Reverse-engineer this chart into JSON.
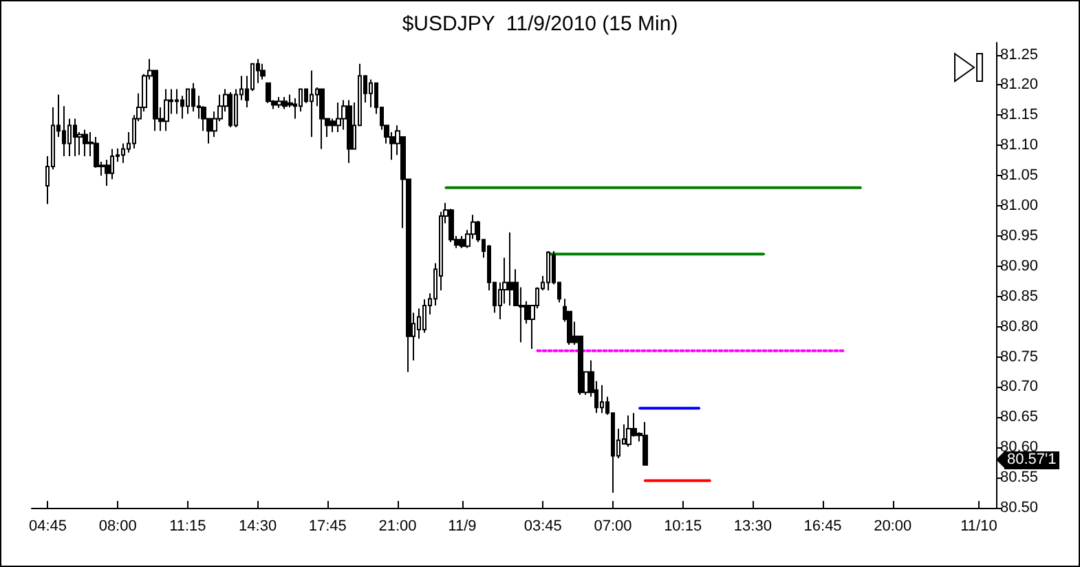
{
  "chart_data": {
    "type": "candlestick",
    "title": "$USDJPY  11/9/2010 (15 Min)",
    "xlim": [
      "2010-11-08T04:00",
      "2010-11-10T00:48"
    ],
    "ylim": [
      80.5,
      81.27
    ],
    "xticks": [
      {
        "value": "2010-11-08T04:45",
        "label": "04:45"
      },
      {
        "value": "2010-11-08T08:00",
        "label": "08:00"
      },
      {
        "value": "2010-11-08T11:15",
        "label": "11:15"
      },
      {
        "value": "2010-11-08T14:30",
        "label": "14:30"
      },
      {
        "value": "2010-11-08T17:45",
        "label": "17:45"
      },
      {
        "value": "2010-11-08T21:00",
        "label": "21:00"
      },
      {
        "value": "2010-11-09T00:00",
        "label": "11/9"
      },
      {
        "value": "2010-11-09T03:45",
        "label": "03:45"
      },
      {
        "value": "2010-11-09T07:00",
        "label": "07:00"
      },
      {
        "value": "2010-11-09T10:15",
        "label": "10:15"
      },
      {
        "value": "2010-11-09T13:30",
        "label": "13:30"
      },
      {
        "value": "2010-11-09T16:45",
        "label": "16:45"
      },
      {
        "value": "2010-11-09T20:00",
        "label": "20:00"
      },
      {
        "value": "2010-11-10T00:00",
        "label": "11/10"
      }
    ],
    "yticks": [
      {
        "value": 80.5,
        "label": "80.50"
      },
      {
        "value": 80.55,
        "label": "80.55"
      },
      {
        "value": 80.6,
        "label": "80.60"
      },
      {
        "value": 80.65,
        "label": "80.65"
      },
      {
        "value": 80.7,
        "label": "80.70"
      },
      {
        "value": 80.75,
        "label": "80.75"
      },
      {
        "value": 80.8,
        "label": "80.80"
      },
      {
        "value": 80.85,
        "label": "80.85"
      },
      {
        "value": 80.9,
        "label": "80.90"
      },
      {
        "value": 80.95,
        "label": "80.95"
      },
      {
        "value": 81,
        "label": "81.00"
      },
      {
        "value": 81.05,
        "label": "81.05"
      },
      {
        "value": 81.1,
        "label": "81.10"
      },
      {
        "value": 81.15,
        "label": "81.15"
      },
      {
        "value": 81.2,
        "label": "81.20"
      },
      {
        "value": 81.25,
        "label": "81.25"
      }
    ],
    "annotations": [
      "80.57'1"
    ],
    "series": [
      {
        "color": "#000000",
        "x": [
          "2010-11-08T04:45",
          "2010-11-08T05:00",
          "2010-11-08T05:15",
          "2010-11-08T05:30",
          "2010-11-08T05:45",
          "2010-11-08T06:00",
          "2010-11-08T06:15",
          "2010-11-08T06:30",
          "2010-11-08T06:45",
          "2010-11-08T07:00",
          "2010-11-08T07:15",
          "2010-11-08T07:30",
          "2010-11-08T07:45",
          "2010-11-08T08:00",
          "2010-11-08T08:15",
          "2010-11-08T08:30",
          "2010-11-08T08:45",
          "2010-11-08T09:00",
          "2010-11-08T09:15",
          "2010-11-08T09:30",
          "2010-11-08T09:45",
          "2010-11-08T10:00",
          "2010-11-08T10:15",
          "2010-11-08T10:30",
          "2010-11-08T10:45",
          "2010-11-08T11:00",
          "2010-11-08T11:15",
          "2010-11-08T11:30",
          "2010-11-08T11:45",
          "2010-11-08T12:00",
          "2010-11-08T12:15",
          "2010-11-08T12:30",
          "2010-11-08T12:45",
          "2010-11-08T13:00",
          "2010-11-08T13:15",
          "2010-11-08T13:30",
          "2010-11-08T13:45",
          "2010-11-08T14:00",
          "2010-11-08T14:15",
          "2010-11-08T14:30",
          "2010-11-08T14:45",
          "2010-11-08T15:00",
          "2010-11-08T15:15",
          "2010-11-08T15:30",
          "2010-11-08T15:45",
          "2010-11-08T16:00",
          "2010-11-08T16:15",
          "2010-11-08T16:30",
          "2010-11-08T16:45",
          "2010-11-08T17:00",
          "2010-11-08T17:15",
          "2010-11-08T17:30",
          "2010-11-08T17:45",
          "2010-11-08T18:00",
          "2010-11-08T18:15",
          "2010-11-08T18:30",
          "2010-11-08T18:45",
          "2010-11-08T19:00",
          "2010-11-08T19:15",
          "2010-11-08T19:30",
          "2010-11-08T19:45",
          "2010-11-08T20:00",
          "2010-11-08T20:15",
          "2010-11-08T20:30",
          "2010-11-08T20:45",
          "2010-11-08T21:00",
          "2010-11-08T21:15",
          "2010-11-08T21:30",
          "2010-11-08T21:45",
          "2010-11-08T22:00",
          "2010-11-08T22:15",
          "2010-11-08T22:30",
          "2010-11-08T22:45",
          "2010-11-08T23:00",
          "2010-11-08T23:15",
          "2010-11-08T23:30",
          "2010-11-08T23:45",
          "2010-11-09T00:00",
          "2010-11-09T00:15",
          "2010-11-09T00:30",
          "2010-11-09T00:45",
          "2010-11-09T01:00",
          "2010-11-09T01:15",
          "2010-11-09T01:30",
          "2010-11-09T01:45",
          "2010-11-09T02:00",
          "2010-11-09T02:15",
          "2010-11-09T02:30",
          "2010-11-09T02:45",
          "2010-11-09T03:00",
          "2010-11-09T03:15",
          "2010-11-09T03:30",
          "2010-11-09T03:45",
          "2010-11-09T04:00",
          "2010-11-09T04:15",
          "2010-11-09T04:30",
          "2010-11-09T04:45",
          "2010-11-09T05:00",
          "2010-11-09T05:15",
          "2010-11-09T05:30",
          "2010-11-09T05:45",
          "2010-11-09T06:00",
          "2010-11-09T06:15",
          "2010-11-09T06:30",
          "2010-11-09T06:45",
          "2010-11-09T07:00",
          "2010-11-09T07:15",
          "2010-11-09T07:30",
          "2010-11-09T07:45",
          "2010-11-09T08:00",
          "2010-11-09T08:15",
          "2010-11-09T08:30"
        ],
        "ohlc": [
          [
            81.033,
            81.082,
            81.003,
            81.065
          ],
          [
            81.065,
            81.163,
            81.06,
            81.133
          ],
          [
            81.133,
            81.184,
            81.114,
            81.124
          ],
          [
            81.124,
            81.165,
            81.082,
            81.103
          ],
          [
            81.103,
            81.144,
            81.082,
            81.133
          ],
          [
            81.133,
            81.144,
            81.082,
            81.114
          ],
          [
            81.114,
            81.122,
            81.084,
            81.118
          ],
          [
            81.118,
            81.126,
            81.082,
            81.103
          ],
          [
            81.103,
            81.122,
            81.082,
            81.105
          ],
          [
            81.103,
            81.114,
            81.063,
            81.065
          ],
          [
            81.065,
            81.073,
            81.05,
            81.067
          ],
          [
            81.067,
            81.076,
            81.033,
            81.054
          ],
          [
            81.054,
            81.094,
            81.044,
            81.082
          ],
          [
            81.082,
            81.095,
            81.073,
            81.084
          ],
          [
            81.084,
            81.103,
            81.071,
            81.094
          ],
          [
            81.094,
            81.122,
            81.088,
            81.103
          ],
          [
            81.103,
            81.15,
            81.095,
            81.144
          ],
          [
            81.144,
            81.186,
            81.14,
            81.163
          ],
          [
            81.163,
            81.218,
            81.156,
            81.215
          ],
          [
            81.215,
            81.243,
            81.209,
            81.224
          ],
          [
            81.224,
            81.224,
            81.124,
            81.144
          ],
          [
            81.144,
            81.163,
            81.124,
            81.14
          ],
          [
            81.14,
            81.193,
            81.124,
            81.175
          ],
          [
            81.175,
            81.193,
            81.152,
            81.173
          ],
          [
            81.173,
            81.193,
            81.152,
            81.175
          ],
          [
            81.175,
            81.182,
            81.144,
            81.165
          ],
          [
            81.165,
            81.193,
            81.152,
            81.193
          ],
          [
            81.193,
            81.203,
            81.156,
            81.165
          ],
          [
            81.165,
            81.182,
            81.144,
            81.163
          ],
          [
            81.163,
            81.165,
            81.124,
            81.144
          ],
          [
            81.144,
            81.144,
            81.103,
            81.124
          ],
          [
            81.124,
            81.156,
            81.114,
            81.144
          ],
          [
            81.144,
            81.184,
            81.14,
            81.165
          ],
          [
            81.165,
            81.193,
            81.156,
            81.184
          ],
          [
            81.184,
            81.188,
            81.13,
            81.133
          ],
          [
            81.133,
            81.193,
            81.13,
            81.184
          ],
          [
            81.184,
            81.215,
            81.175,
            81.193
          ],
          [
            81.193,
            81.215,
            81.163,
            81.175
          ],
          [
            81.193,
            81.235,
            81.19,
            81.235
          ],
          [
            81.235,
            81.243,
            81.203,
            81.224
          ],
          [
            81.224,
            81.235,
            81.209,
            81.215
          ],
          [
            81.203,
            81.203,
            81.17,
            81.173
          ],
          [
            81.173,
            81.175,
            81.16,
            81.167
          ],
          [
            81.167,
            81.18,
            81.162,
            81.173
          ],
          [
            81.173,
            81.18,
            81.16,
            81.165
          ],
          [
            81.17,
            81.184,
            81.163,
            81.167
          ],
          [
            81.168,
            81.178,
            81.144,
            81.165
          ],
          [
            81.165,
            81.193,
            81.156,
            81.193
          ],
          [
            81.193,
            81.193,
            81.17,
            81.173
          ],
          [
            81.173,
            81.224,
            81.114,
            81.184
          ],
          [
            81.184,
            81.196,
            81.165,
            81.193
          ],
          [
            81.193,
            81.193,
            81.094,
            81.144
          ],
          [
            81.144,
            81.144,
            81.114,
            81.133
          ],
          [
            81.14,
            81.144,
            81.122,
            81.133
          ],
          [
            81.133,
            81.171,
            81.122,
            81.144
          ],
          [
            81.144,
            81.175,
            81.126,
            81.165
          ],
          [
            81.165,
            81.175,
            81.071,
            81.094
          ],
          [
            81.094,
            81.171,
            81.094,
            81.133
          ],
          [
            81.133,
            81.235,
            81.133,
            81.215
          ],
          [
            81.215,
            81.215,
            81.171,
            81.186
          ],
          [
            81.186,
            81.209,
            81.163,
            81.203
          ],
          [
            81.203,
            81.203,
            81.152,
            81.163
          ],
          [
            81.163,
            81.163,
            81.126,
            81.133
          ],
          [
            81.133,
            81.133,
            81.103,
            81.114
          ],
          [
            81.114,
            81.122,
            81.076,
            81.103
          ],
          [
            81.103,
            81.133,
            81.084,
            81.124
          ],
          [
            81.114,
            81.114,
            80.963,
            81.044
          ],
          [
            81.044,
            81.044,
            80.725,
            80.784
          ],
          [
            80.784,
            80.823,
            80.744,
            80.805
          ],
          [
            80.795,
            80.83,
            80.78,
            80.816
          ],
          [
            80.795,
            80.845,
            80.79,
            80.835
          ],
          [
            80.835,
            80.855,
            80.82,
            80.846
          ],
          [
            80.846,
            80.905,
            80.835,
            80.895
          ],
          [
            80.884,
            80.99,
            80.86,
            80.983
          ],
          [
            80.983,
            81.005,
            80.971,
            80.993
          ],
          [
            80.993,
            80.995,
            80.94,
            80.944
          ],
          [
            80.944,
            80.95,
            80.93,
            80.935
          ],
          [
            80.944,
            80.95,
            80.93,
            80.933
          ],
          [
            80.933,
            80.96,
            80.93,
            80.953
          ],
          [
            80.953,
            80.985,
            80.945,
            80.973
          ],
          [
            80.973,
            80.975,
            80.94,
            80.944
          ],
          [
            80.944,
            80.944,
            80.914,
            80.925
          ],
          [
            80.933,
            80.935,
            80.86,
            80.873
          ],
          [
            80.873,
            80.873,
            80.823,
            80.835
          ],
          [
            80.835,
            80.873,
            80.812,
            80.861
          ],
          [
            80.861,
            80.914,
            80.838,
            80.873
          ],
          [
            80.873,
            80.956,
            80.835,
            80.861
          ],
          [
            80.873,
            80.895,
            80.835,
            80.835
          ],
          [
            80.835,
            80.865,
            80.774,
            80.833
          ],
          [
            80.835,
            80.842,
            80.805,
            80.812
          ],
          [
            80.812,
            80.835,
            80.763,
            80.835
          ],
          [
            80.835,
            80.865,
            80.83,
            80.863
          ],
          [
            80.863,
            80.884,
            80.86,
            80.873
          ],
          [
            80.873,
            80.925,
            80.86,
            80.923
          ],
          [
            80.918,
            80.925,
            80.87,
            80.873
          ],
          [
            80.873,
            80.873,
            80.84,
            80.846
          ],
          [
            80.833,
            80.846,
            80.808,
            80.812
          ],
          [
            80.825,
            80.825,
            80.77,
            80.774
          ],
          [
            80.784,
            80.808,
            80.77,
            80.774
          ],
          [
            80.784,
            80.784,
            80.687,
            80.691
          ],
          [
            80.691,
            80.725,
            80.687,
            80.725
          ],
          [
            80.725,
            80.744,
            80.684,
            80.691
          ],
          [
            80.695,
            80.71,
            80.657,
            80.666
          ],
          [
            80.666,
            80.703,
            80.657,
            80.675
          ],
          [
            80.675,
            80.684,
            80.654,
            80.657
          ],
          [
            80.657,
            80.657,
            80.525,
            80.586
          ],
          [
            80.586,
            80.631,
            80.582,
            80.612
          ],
          [
            80.606,
            80.638,
            80.605,
            80.614
          ],
          [
            80.605,
            80.653,
            80.601,
            80.631
          ],
          [
            80.631,
            80.657,
            80.618,
            80.62
          ],
          [
            80.623,
            80.625,
            80.61,
            80.62
          ],
          [
            80.62,
            80.642,
            80.571,
            80.571
          ]
        ]
      },
      {
        "type": "line",
        "color": "#008000",
        "line_style": "solid",
        "x": [
          "2010-11-08T23:15",
          "2010-11-09T18:30"
        ],
        "values": [
          81.03,
          81.03
        ]
      },
      {
        "type": "line",
        "color": "#008000",
        "line_style": "solid",
        "x": [
          "2010-11-09T04:00",
          "2010-11-09T14:00"
        ],
        "values": [
          80.92,
          80.92
        ]
      },
      {
        "type": "line",
        "color": "#ff00ff",
        "line_style": "dotted",
        "x": [
          "2010-11-09T03:30",
          "2010-11-09T17:45"
        ],
        "values": [
          80.76,
          80.76
        ]
      },
      {
        "type": "line",
        "color": "#0000ff",
        "line_style": "solid",
        "x": [
          "2010-11-09T08:15",
          "2010-11-09T11:00"
        ],
        "values": [
          80.665,
          80.665
        ]
      },
      {
        "type": "line",
        "color": "#ff0000",
        "line_style": "solid",
        "x": [
          "2010-11-09T08:30",
          "2010-11-09T11:30"
        ],
        "values": [
          80.545,
          80.545
        ]
      }
    ]
  }
}
